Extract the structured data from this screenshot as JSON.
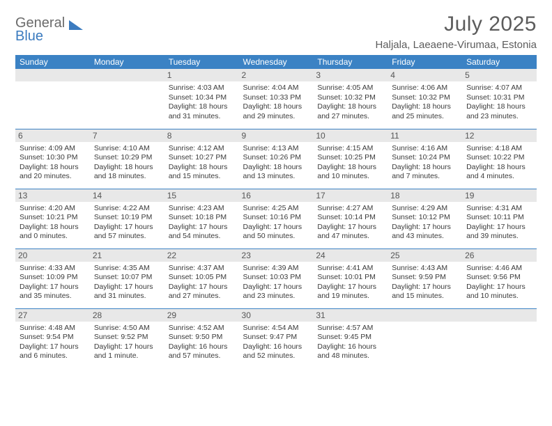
{
  "brand": {
    "line1": "General",
    "line2": "Blue"
  },
  "title": "July 2025",
  "location": "Haljala, Laeaene-Virumaa, Estonia",
  "colors": {
    "header_bg": "#3b82c4",
    "header_text": "#ffffff",
    "daynum_bg": "#e8e8e8",
    "border": "#3b82c4",
    "body_text": "#3a3a3a",
    "title_text": "#5c5c5c",
    "brand_gray": "#6b6b6b",
    "brand_blue": "#3b7bbf"
  },
  "weekdays": [
    "Sunday",
    "Monday",
    "Tuesday",
    "Wednesday",
    "Thursday",
    "Friday",
    "Saturday"
  ],
  "weeks": [
    [
      null,
      null,
      {
        "n": "1",
        "sr": "4:03 AM",
        "ss": "10:34 PM",
        "dl": "18 hours and 31 minutes."
      },
      {
        "n": "2",
        "sr": "4:04 AM",
        "ss": "10:33 PM",
        "dl": "18 hours and 29 minutes."
      },
      {
        "n": "3",
        "sr": "4:05 AM",
        "ss": "10:32 PM",
        "dl": "18 hours and 27 minutes."
      },
      {
        "n": "4",
        "sr": "4:06 AM",
        "ss": "10:32 PM",
        "dl": "18 hours and 25 minutes."
      },
      {
        "n": "5",
        "sr": "4:07 AM",
        "ss": "10:31 PM",
        "dl": "18 hours and 23 minutes."
      }
    ],
    [
      {
        "n": "6",
        "sr": "4:09 AM",
        "ss": "10:30 PM",
        "dl": "18 hours and 20 minutes."
      },
      {
        "n": "7",
        "sr": "4:10 AM",
        "ss": "10:29 PM",
        "dl": "18 hours and 18 minutes."
      },
      {
        "n": "8",
        "sr": "4:12 AM",
        "ss": "10:27 PM",
        "dl": "18 hours and 15 minutes."
      },
      {
        "n": "9",
        "sr": "4:13 AM",
        "ss": "10:26 PM",
        "dl": "18 hours and 13 minutes."
      },
      {
        "n": "10",
        "sr": "4:15 AM",
        "ss": "10:25 PM",
        "dl": "18 hours and 10 minutes."
      },
      {
        "n": "11",
        "sr": "4:16 AM",
        "ss": "10:24 PM",
        "dl": "18 hours and 7 minutes."
      },
      {
        "n": "12",
        "sr": "4:18 AM",
        "ss": "10:22 PM",
        "dl": "18 hours and 4 minutes."
      }
    ],
    [
      {
        "n": "13",
        "sr": "4:20 AM",
        "ss": "10:21 PM",
        "dl": "18 hours and 0 minutes."
      },
      {
        "n": "14",
        "sr": "4:22 AM",
        "ss": "10:19 PM",
        "dl": "17 hours and 57 minutes."
      },
      {
        "n": "15",
        "sr": "4:23 AM",
        "ss": "10:18 PM",
        "dl": "17 hours and 54 minutes."
      },
      {
        "n": "16",
        "sr": "4:25 AM",
        "ss": "10:16 PM",
        "dl": "17 hours and 50 minutes."
      },
      {
        "n": "17",
        "sr": "4:27 AM",
        "ss": "10:14 PM",
        "dl": "17 hours and 47 minutes."
      },
      {
        "n": "18",
        "sr": "4:29 AM",
        "ss": "10:12 PM",
        "dl": "17 hours and 43 minutes."
      },
      {
        "n": "19",
        "sr": "4:31 AM",
        "ss": "10:11 PM",
        "dl": "17 hours and 39 minutes."
      }
    ],
    [
      {
        "n": "20",
        "sr": "4:33 AM",
        "ss": "10:09 PM",
        "dl": "17 hours and 35 minutes."
      },
      {
        "n": "21",
        "sr": "4:35 AM",
        "ss": "10:07 PM",
        "dl": "17 hours and 31 minutes."
      },
      {
        "n": "22",
        "sr": "4:37 AM",
        "ss": "10:05 PM",
        "dl": "17 hours and 27 minutes."
      },
      {
        "n": "23",
        "sr": "4:39 AM",
        "ss": "10:03 PM",
        "dl": "17 hours and 23 minutes."
      },
      {
        "n": "24",
        "sr": "4:41 AM",
        "ss": "10:01 PM",
        "dl": "17 hours and 19 minutes."
      },
      {
        "n": "25",
        "sr": "4:43 AM",
        "ss": "9:59 PM",
        "dl": "17 hours and 15 minutes."
      },
      {
        "n": "26",
        "sr": "4:46 AM",
        "ss": "9:56 PM",
        "dl": "17 hours and 10 minutes."
      }
    ],
    [
      {
        "n": "27",
        "sr": "4:48 AM",
        "ss": "9:54 PM",
        "dl": "17 hours and 6 minutes."
      },
      {
        "n": "28",
        "sr": "4:50 AM",
        "ss": "9:52 PM",
        "dl": "17 hours and 1 minute."
      },
      {
        "n": "29",
        "sr": "4:52 AM",
        "ss": "9:50 PM",
        "dl": "16 hours and 57 minutes."
      },
      {
        "n": "30",
        "sr": "4:54 AM",
        "ss": "9:47 PM",
        "dl": "16 hours and 52 minutes."
      },
      {
        "n": "31",
        "sr": "4:57 AM",
        "ss": "9:45 PM",
        "dl": "16 hours and 48 minutes."
      },
      null,
      null
    ]
  ],
  "labels": {
    "sunrise": "Sunrise:",
    "sunset": "Sunset:",
    "daylight": "Daylight:"
  }
}
